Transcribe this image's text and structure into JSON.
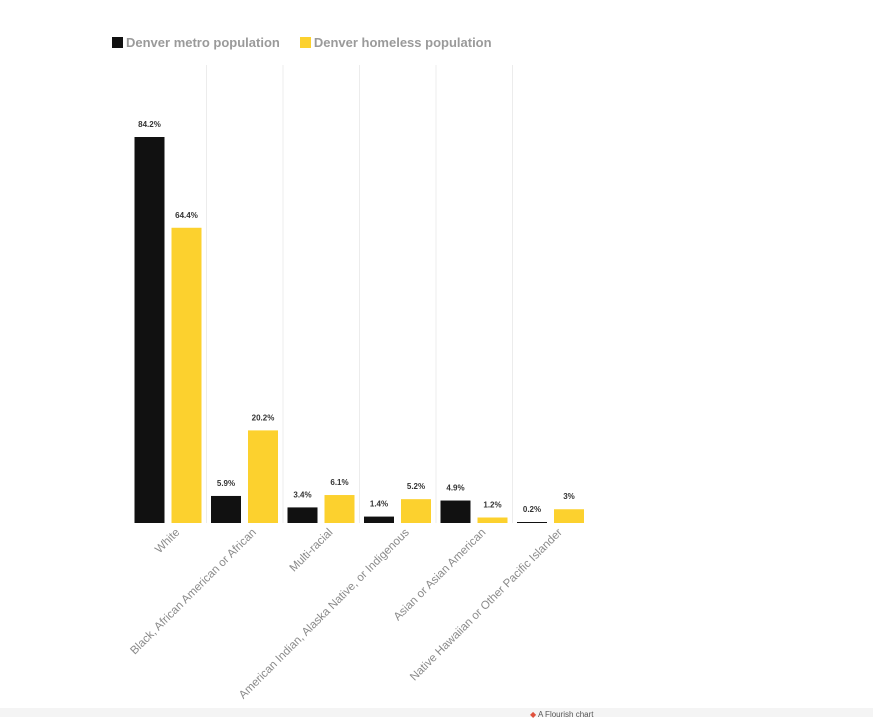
{
  "legend": {
    "items": [
      {
        "label": "Denver metro population",
        "color": "#111111"
      },
      {
        "label": "Denver homeless population",
        "color": "#fcd12e"
      }
    ]
  },
  "footer": {
    "credit": "A Flourish chart"
  },
  "chart_data": {
    "type": "bar",
    "categories": [
      "White",
      "Black, African American or African",
      "Multi-racial",
      "American Indian, Alaska Native, or Indigenous",
      "Asian or Asian American",
      "Native Hawaiian or Other Pacific Islander"
    ],
    "series": [
      {
        "name": "Denver metro population",
        "color": "#111111",
        "values": [
          84.2,
          5.9,
          3.4,
          1.4,
          4.9,
          0.2
        ],
        "labels": [
          "84.2%",
          "5.9%",
          "3.4%",
          "1.4%",
          "4.9%",
          "0.2%"
        ]
      },
      {
        "name": "Denver homeless population",
        "color": "#fcd12e",
        "values": [
          64.4,
          20.2,
          6.1,
          5.2,
          1.2,
          3
        ],
        "labels": [
          "64.4%",
          "20.2%",
          "6.1%",
          "5.2%",
          "1.2%",
          "3%"
        ]
      }
    ],
    "ylim": [
      0,
      84.2
    ],
    "grid": "vertical separators",
    "legend_position": "top-left"
  }
}
